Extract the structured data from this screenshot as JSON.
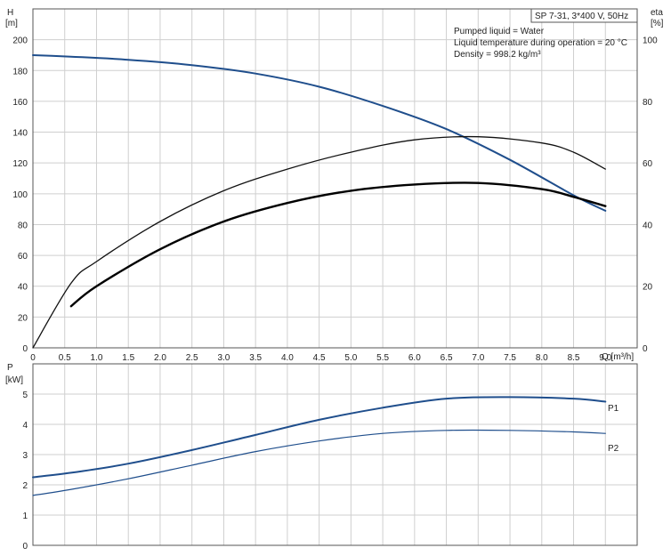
{
  "chart_data": [
    {
      "type": "line",
      "panel": "head-efficiency",
      "title": "SP 7-31, 3*400 V, 50Hz",
      "info_lines": [
        "Pumped liquid = Water",
        "Liquid temperature during operation = 20 °C",
        "Density = 998.2 kg/m³"
      ],
      "y_left_label": [
        "H",
        "[m]"
      ],
      "y_right_label": [
        "eta",
        "[%]"
      ],
      "xlabel": "Q [m³/h]",
      "xlim": [
        0,
        9.5
      ],
      "ylim_left": [
        0,
        220
      ],
      "ylim_right": [
        0,
        110
      ],
      "x_ticks": [
        "0",
        "0.5",
        "1.0",
        "1.5",
        "2.0",
        "2.5",
        "3.0",
        "3.5",
        "4.0",
        "4.5",
        "5.0",
        "5.5",
        "6.0",
        "6.5",
        "7.0",
        "7.5",
        "8.0",
        "8.5",
        "9.0"
      ],
      "y_left_ticks": [
        "0",
        "20",
        "40",
        "60",
        "80",
        "100",
        "120",
        "140",
        "160",
        "180",
        "200"
      ],
      "y_right_ticks": [
        "0",
        "20",
        "40",
        "60",
        "80",
        "100"
      ],
      "grid": true,
      "series": [
        {
          "color": "#1f4e8c",
          "axis": "left",
          "x": [
            0,
            0.6,
            1.5,
            2.5,
            3.5,
            4.5,
            5.5,
            6.5,
            7.5,
            8.5,
            9.0
          ],
          "y": [
            190,
            189,
            187,
            183.5,
            178,
            169.5,
            157,
            142,
            122,
            99,
            89
          ]
        },
        {
          "color": "#111111",
          "axis": "right",
          "x": [
            0,
            0.6,
            1.0,
            2.0,
            3.0,
            4.0,
            5.0,
            6.0,
            7.0,
            8.0,
            8.5,
            9.0
          ],
          "y": [
            0,
            21,
            28,
            41,
            51,
            58,
            63.5,
            67.5,
            68.5,
            66.5,
            63.5,
            58
          ]
        },
        {
          "color": "#000000",
          "axis": "right",
          "x": [
            0.6,
            1.0,
            2.0,
            3.0,
            4.0,
            5.0,
            6.0,
            7.0,
            8.0,
            8.5,
            9.0
          ],
          "y": [
            13.5,
            20,
            32,
            41,
            47,
            51,
            53,
            53.5,
            51.5,
            49,
            46
          ]
        }
      ]
    },
    {
      "type": "line",
      "panel": "power",
      "y_left_label": [
        "P",
        "[kW]"
      ],
      "xlim": [
        0,
        9.5
      ],
      "ylim": [
        0,
        6
      ],
      "y_ticks": [
        "0",
        "1",
        "2",
        "3",
        "4",
        "5"
      ],
      "grid": true,
      "series": [
        {
          "name": "P1",
          "color": "#1f4e8c",
          "x": [
            0,
            0.6,
            1.5,
            2.5,
            3.5,
            4.5,
            5.5,
            6.5,
            7.5,
            8.5,
            9.0
          ],
          "y": [
            2.25,
            2.4,
            2.7,
            3.15,
            3.65,
            4.15,
            4.55,
            4.85,
            4.9,
            4.85,
            4.75
          ]
        },
        {
          "name": "P2",
          "color": "#1f4e8c",
          "x": [
            0,
            0.6,
            1.5,
            2.5,
            3.5,
            4.5,
            5.5,
            6.5,
            7.5,
            8.5,
            9.0
          ],
          "y": [
            1.65,
            1.85,
            2.2,
            2.65,
            3.1,
            3.45,
            3.7,
            3.8,
            3.8,
            3.75,
            3.7
          ]
        }
      ]
    }
  ]
}
